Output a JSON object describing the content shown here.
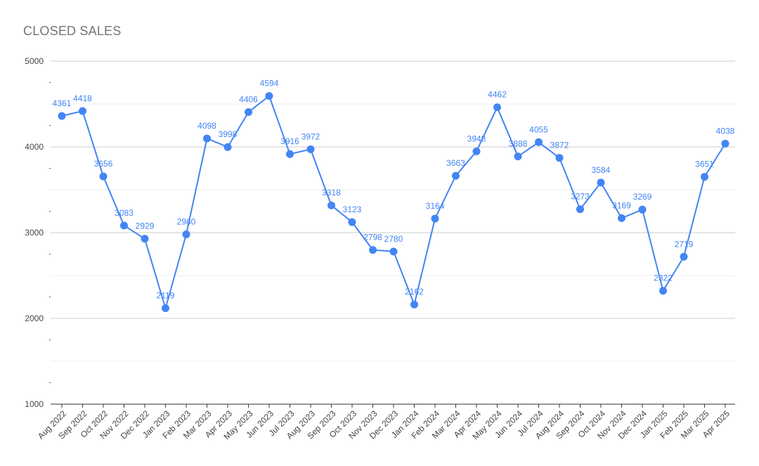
{
  "chart_data": {
    "type": "line",
    "title": "CLOSED SALES",
    "xlabel": "",
    "ylabel": "",
    "ylim": [
      1000,
      5000
    ],
    "yticks": [
      "1000",
      "2000",
      "3000",
      "4000",
      "5000"
    ],
    "grid": true,
    "legend": "none",
    "line_color": "#4285f4",
    "label_color": "#4285f4",
    "categories": [
      "Aug 2022",
      "Sep 2022",
      "Oct 2022",
      "Nov 2022",
      "Dec 2022",
      "Jan 2023",
      "Feb 2023",
      "Mar 2023",
      "Apr 2023",
      "May 2023",
      "Jun 2023",
      "Jul 2023",
      "Aug 2023",
      "Sep 2023",
      "Oct 2023",
      "Nov 2023",
      "Dec 2023",
      "Jan 2024",
      "Feb 2024",
      "Mar 2024",
      "Apr 2024",
      "May 2024",
      "Jun 2024",
      "Jul 2024",
      "Aug 2024",
      "Sep 2024",
      "Oct 2024",
      "Nov 2024",
      "Dec 2024",
      "Jan 2025",
      "Feb 2025",
      "Mar 2025",
      "Apr 2025"
    ],
    "series": [
      {
        "values": [
          4361,
          4418,
          3656,
          3083,
          2929,
          2119,
          2980,
          4098,
          3998,
          4406,
          4594,
          3916,
          3972,
          3318,
          3123,
          2798,
          2780,
          2162,
          3164,
          3663,
          3948,
          4462,
          3888,
          4055,
          3872,
          3273,
          3584,
          3169,
          3269,
          2322,
          2719,
          3651,
          4038
        ]
      }
    ]
  }
}
